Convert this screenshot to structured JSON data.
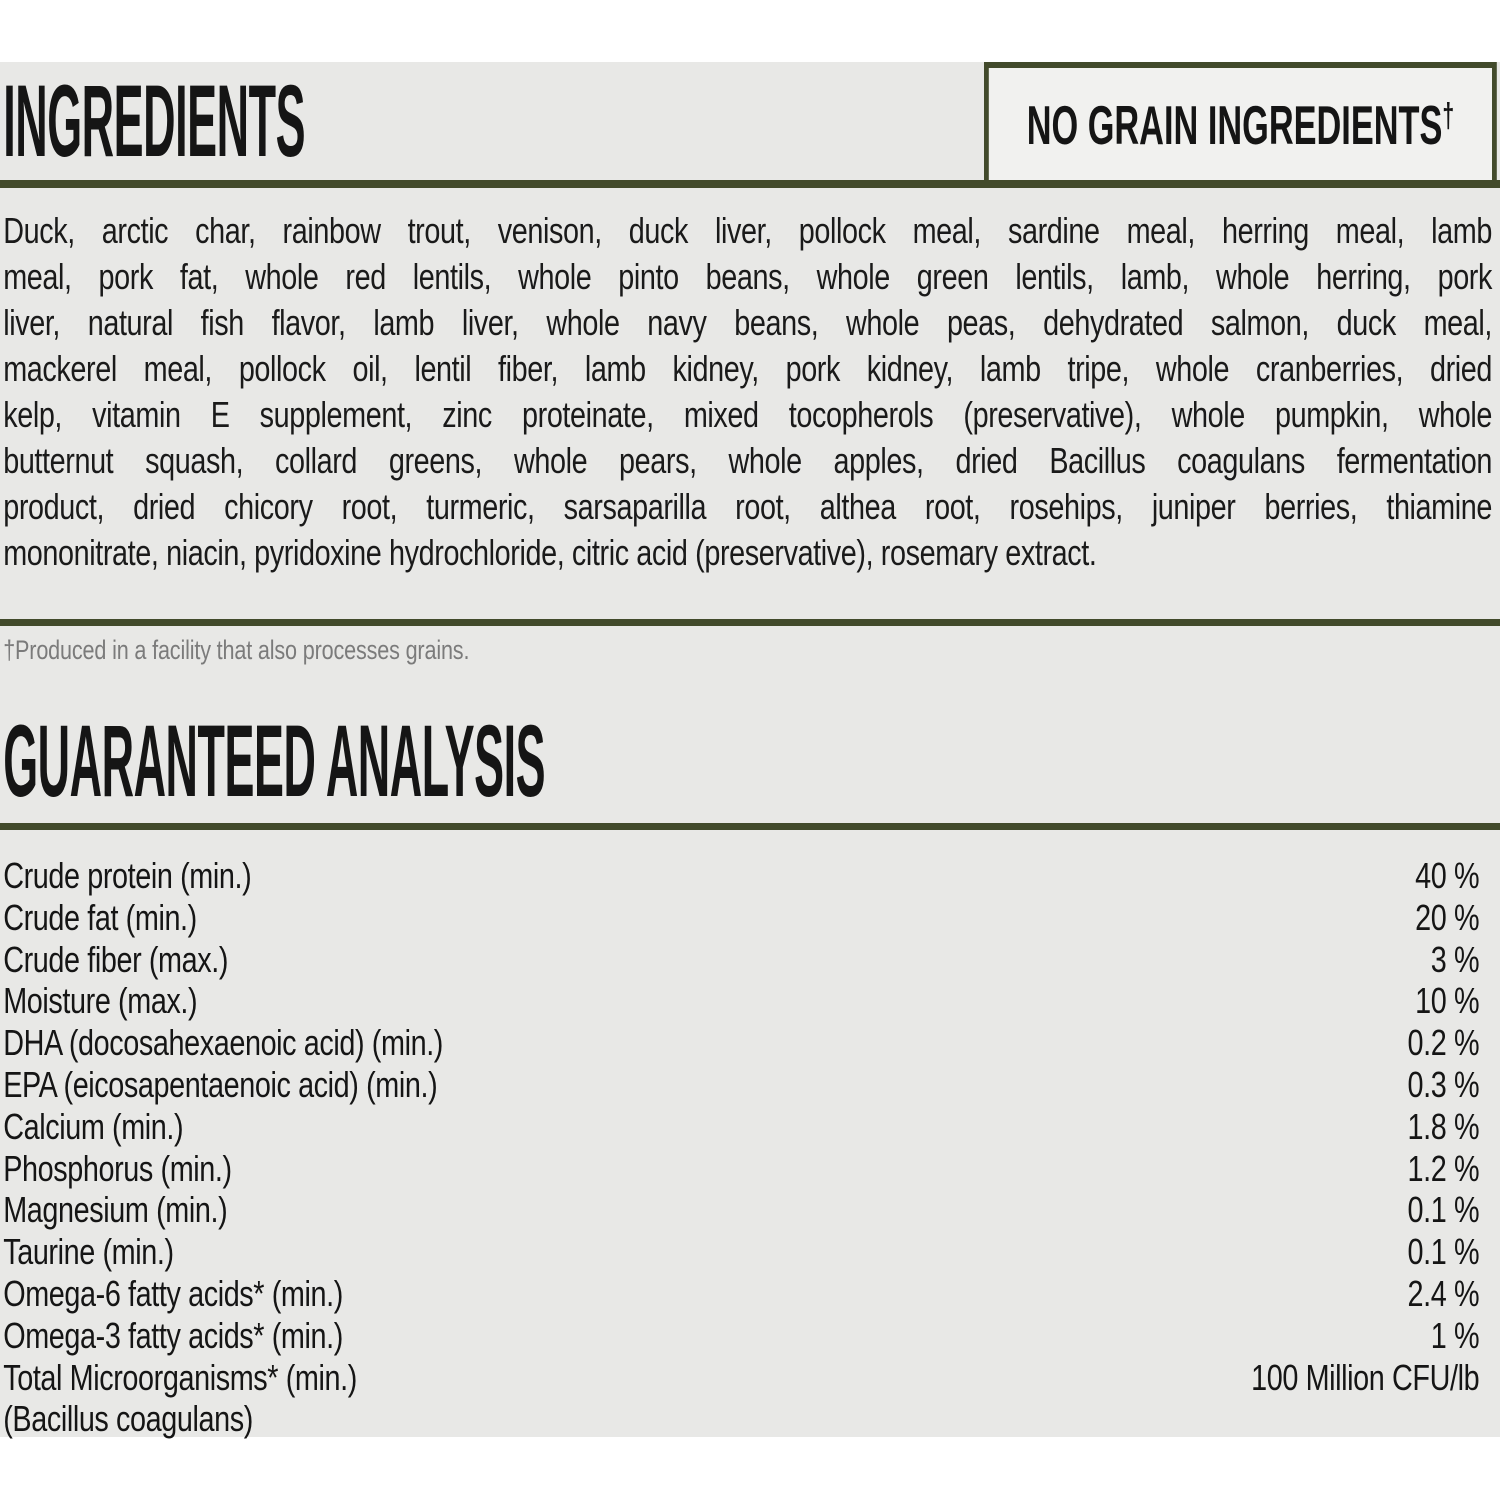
{
  "colors": {
    "page_bg": "#ffffff",
    "panel_bg": "#e8e8e6",
    "badge_bg": "#f1f1ef",
    "accent_green": "#424a2b",
    "text": "#151515",
    "footnote_gray": "#7b7b7b"
  },
  "ingredients": {
    "title": "INGREDIENTS",
    "badge_label": "NO GRAIN INGREDIENTS",
    "badge_dagger": "†",
    "lines": [
      "Duck, arctic char, rainbow trout, venison, duck liver, pollock meal, sardine meal, herring meal, lamb",
      "meal, pork fat, whole red lentils, whole pinto beans, whole green lentils, lamb, whole herring, pork",
      "liver, natural fish flavor, lamb liver, whole navy beans, whole peas, dehydrated salmon, duck meal,",
      "mackerel meal, pollock oil, lentil fiber, lamb kidney, pork kidney, lamb tripe, whole cranberries, dried",
      "kelp, vitamin E supplement, zinc proteinate, mixed tocopherols (preservative), whole pumpkin, whole",
      "butternut squash, collard greens, whole pears, whole apples, dried Bacillus coagulans fermentation",
      "product, dried chicory root, turmeric, sarsaparilla root, althea root, rosehips, juniper berries, thiamine",
      "mononitrate, niacin, pyridoxine hydrochloride, citric acid (preservative), rosemary extract."
    ],
    "footnote": "†Produced in a facility that also processes grains."
  },
  "analysis": {
    "title": "GUARANTEED ANALYSIS",
    "rows": [
      {
        "label": "Crude protein (min.)",
        "value": "40 %"
      },
      {
        "label": "Crude fat (min.)",
        "value": "20 %"
      },
      {
        "label": "Crude fiber (max.)",
        "value": "3 %"
      },
      {
        "label": "Moisture (max.)",
        "value": "10 %"
      },
      {
        "label": "DHA (docosahexaenoic acid) (min.)",
        "value": "0.2 %"
      },
      {
        "label": "EPA (eicosapentaenoic acid) (min.)",
        "value": "0.3 %"
      },
      {
        "label": "Calcium (min.)",
        "value": "1.8 %"
      },
      {
        "label": "Phosphorus (min.)",
        "value": "1.2 %"
      },
      {
        "label": "Magnesium (min.)",
        "value": "0.1 %"
      },
      {
        "label": "Taurine (min.)",
        "value": "0.1 %"
      },
      {
        "label": "Omega-6 fatty acids* (min.)",
        "value": "2.4 %"
      },
      {
        "label": "Omega-3 fatty acids* (min.)",
        "value": "1 %"
      },
      {
        "label": "Total Microorganisms* (min.)",
        "value": "100 Million CFU/lb"
      },
      {
        "label": "(Bacillus coagulans)",
        "value": ""
      }
    ]
  }
}
